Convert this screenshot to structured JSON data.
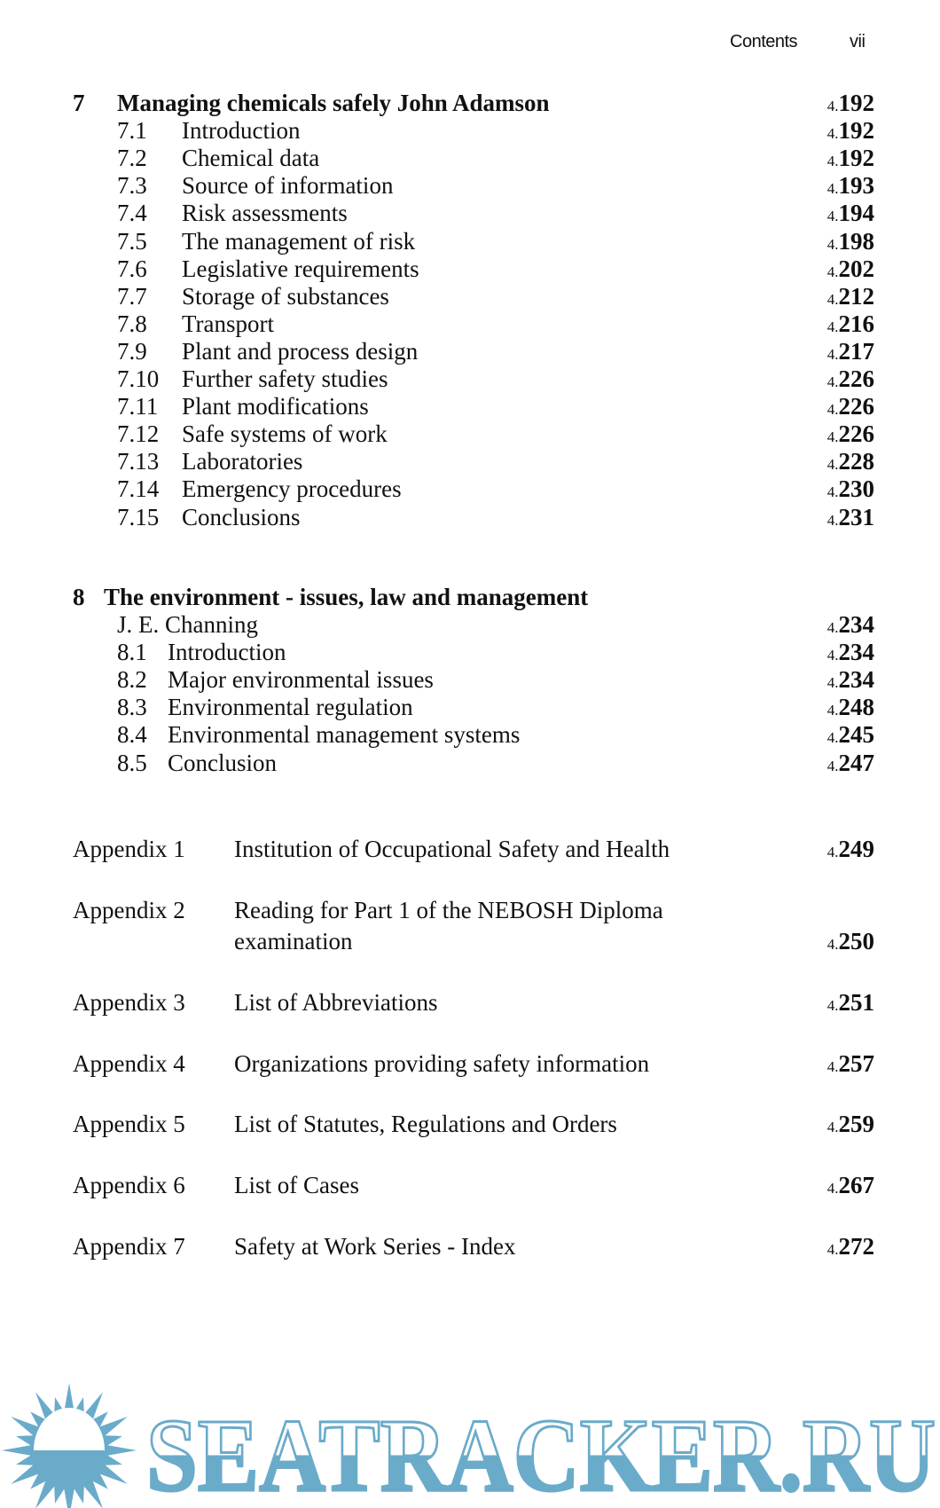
{
  "header": {
    "section": "Contents",
    "page": "vii"
  },
  "chapter7": {
    "number": "7",
    "title": "Managing chemicals safely John Adamson",
    "page_prefix": "4.",
    "page": "192",
    "sections": [
      {
        "num": "7.1",
        "title": "Introduction",
        "page": "192"
      },
      {
        "num": "7.2",
        "title": "Chemical data",
        "page": "192"
      },
      {
        "num": "7.3",
        "title": "Source of information",
        "page": "193"
      },
      {
        "num": "7.4",
        "title": "Risk assessments",
        "page": "194"
      },
      {
        "num": "7.5",
        "title": "The management of risk",
        "page": "198"
      },
      {
        "num": "7.6",
        "title": "Legislative requirements",
        "page": "202"
      },
      {
        "num": "7.7",
        "title": "Storage of substances",
        "page": "212"
      },
      {
        "num": "7.8",
        "title": "Transport",
        "page": "216"
      },
      {
        "num": "7.9",
        "title": "Plant and process design",
        "page": "217"
      },
      {
        "num": "7.10",
        "title": "Further safety studies",
        "page": "226"
      },
      {
        "num": "7.11",
        "title": "Plant modifications",
        "page": "226"
      },
      {
        "num": "7.12",
        "title": "Safe systems of work",
        "page": "226"
      },
      {
        "num": "7.13",
        "title": "Laboratories",
        "page": "228"
      },
      {
        "num": "7.14",
        "title": "Emergency procedures",
        "page": "230"
      },
      {
        "num": "7.15",
        "title": "Conclusions",
        "page": "231"
      }
    ]
  },
  "chapter8": {
    "number": "8",
    "title": "The environment - issues, law and management",
    "author": "J. E. Channing",
    "page_prefix": "4.",
    "page": "234",
    "sections": [
      {
        "num": "8.1",
        "title": "Introduction",
        "page": "234"
      },
      {
        "num": "8.2",
        "title": "Major environmental issues",
        "page": "234"
      },
      {
        "num": "8.3",
        "title": "Environmental regulation",
        "page": "248"
      },
      {
        "num": "8.4",
        "title": "Environmental management systems",
        "page": "245"
      },
      {
        "num": "8.5",
        "title": "Conclusion",
        "page": "247"
      }
    ]
  },
  "appendices": [
    {
      "label": "Appendix 1",
      "title": "Institution of Occupational Safety and Health",
      "page": "249"
    },
    {
      "label": "Appendix 2",
      "title": "Reading for Part 1 of the NEBOSH Diploma",
      "title2": "examination",
      "page": "250"
    },
    {
      "label": "Appendix 3",
      "title": "List of Abbreviations",
      "page": "251"
    },
    {
      "label": "Appendix 4",
      "title": "Organizations providing safety information",
      "page": "257"
    },
    {
      "label": "Appendix 5",
      "title": "List of Statutes, Regulations and Orders",
      "page": "259"
    },
    {
      "label": "Appendix 6",
      "title": "List of Cases",
      "page": "267"
    },
    {
      "label": "Appendix 7",
      "title": "Safety at Work Series - Index",
      "page": "272"
    }
  ],
  "page_prefix": "4.",
  "watermark": {
    "text": "SEATRACKER.RU",
    "color": "#6aabca",
    "icon": "sun-icon"
  }
}
